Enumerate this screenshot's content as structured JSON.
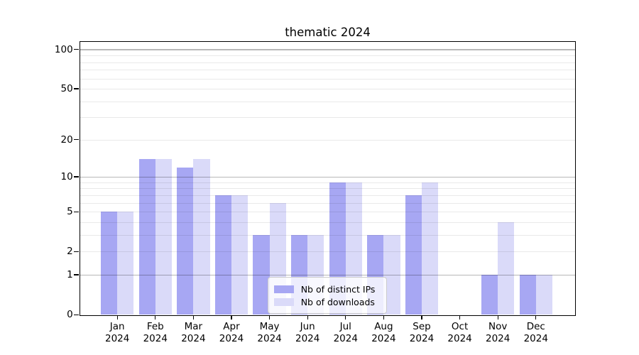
{
  "chart_data": {
    "type": "bar",
    "title": "thematic 2024",
    "categories": [
      "Jan 2024",
      "Feb 2024",
      "Mar 2024",
      "Apr 2024",
      "May 2024",
      "Jun 2024",
      "Jul 2024",
      "Aug 2024",
      "Sep 2024",
      "Oct 2024",
      "Nov 2024",
      "Dec 2024"
    ],
    "series": [
      {
        "name": "Nb of distinct IPs",
        "color": "#a7a7f3",
        "values": [
          5,
          14,
          12,
          7,
          3,
          3,
          9,
          3,
          7,
          0,
          1,
          1
        ]
      },
      {
        "name": "Nb of downloads",
        "color": "#dadaf9",
        "values": [
          5,
          14,
          14,
          7,
          6,
          3,
          9,
          3,
          9,
          0,
          4,
          1
        ]
      }
    ],
    "xlabel": "",
    "ylabel": "",
    "yscale": "log1p",
    "ylim": [
      0,
      114
    ],
    "yticks": [
      0,
      1,
      2,
      5,
      10,
      20,
      50,
      100
    ],
    "grid_major": [
      1,
      10,
      100
    ],
    "grid_minor": [
      2,
      3,
      4,
      5,
      6,
      7,
      8,
      9,
      20,
      30,
      40,
      50,
      60,
      70,
      80,
      90
    ],
    "grid": true,
    "legend_position": "lower center",
    "colors": {
      "major_grid": "#b8b8b8",
      "minor_grid": "#e9e9e9",
      "spine": "#000000",
      "text": "#000000",
      "legend_border": "#cccccc",
      "legend_bg": "rgba(255,255,255,0.8)"
    }
  }
}
